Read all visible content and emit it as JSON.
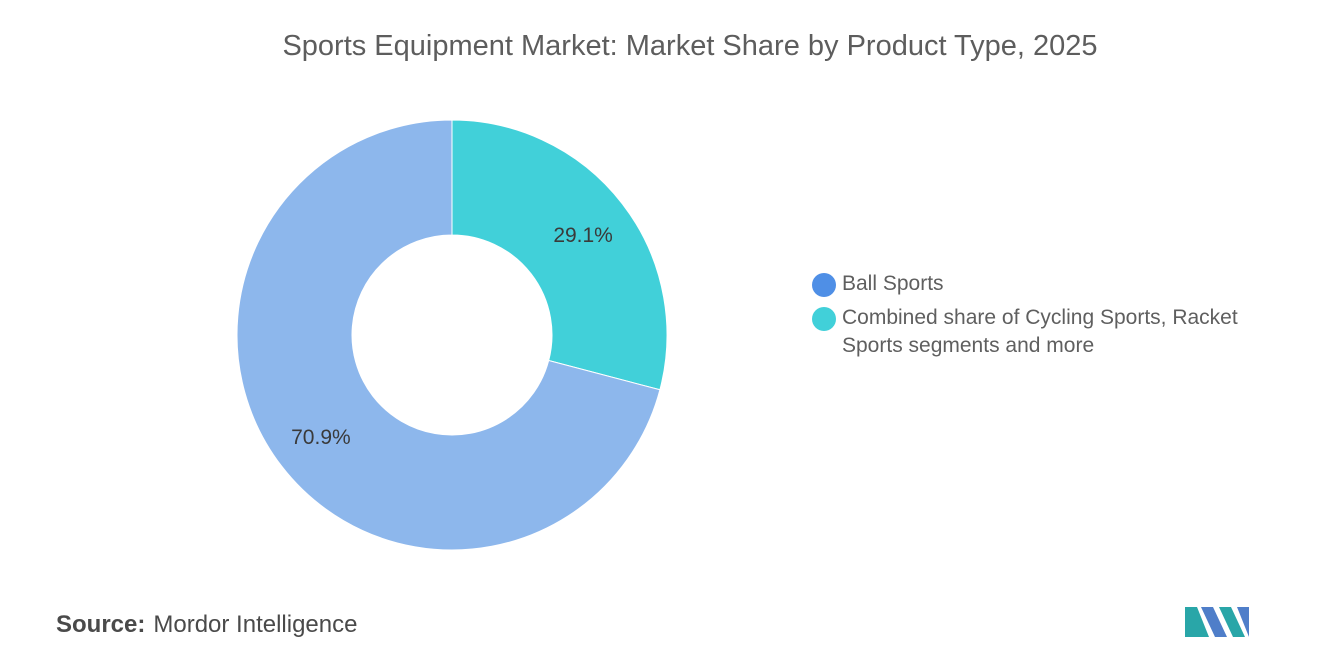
{
  "title": "Sports Equipment Market: Market Share by Product Type, 2025",
  "source": {
    "label": "Source:",
    "value": "Mordor Intelligence"
  },
  "logo": {
    "name": "mordor-intelligence-logo"
  },
  "colors": {
    "ball_sports": "#8db7ec",
    "combined": "#41d0d9",
    "legend_ball": "#4f8fe6",
    "logo_teal": "#29a6a8",
    "logo_blue": "#4f7ec9"
  },
  "chart_data": {
    "type": "pie",
    "donut": true,
    "title": "Sports Equipment Market: Market Share by Product Type, 2025",
    "legend_position": "right",
    "series": [
      {
        "name": "Ball Sports",
        "value": 70.9,
        "label": "70.9%"
      },
      {
        "name": "Combined share of Cycling Sports, Racket Sports segments and more",
        "value": 29.1,
        "label": "29.1%"
      }
    ]
  }
}
